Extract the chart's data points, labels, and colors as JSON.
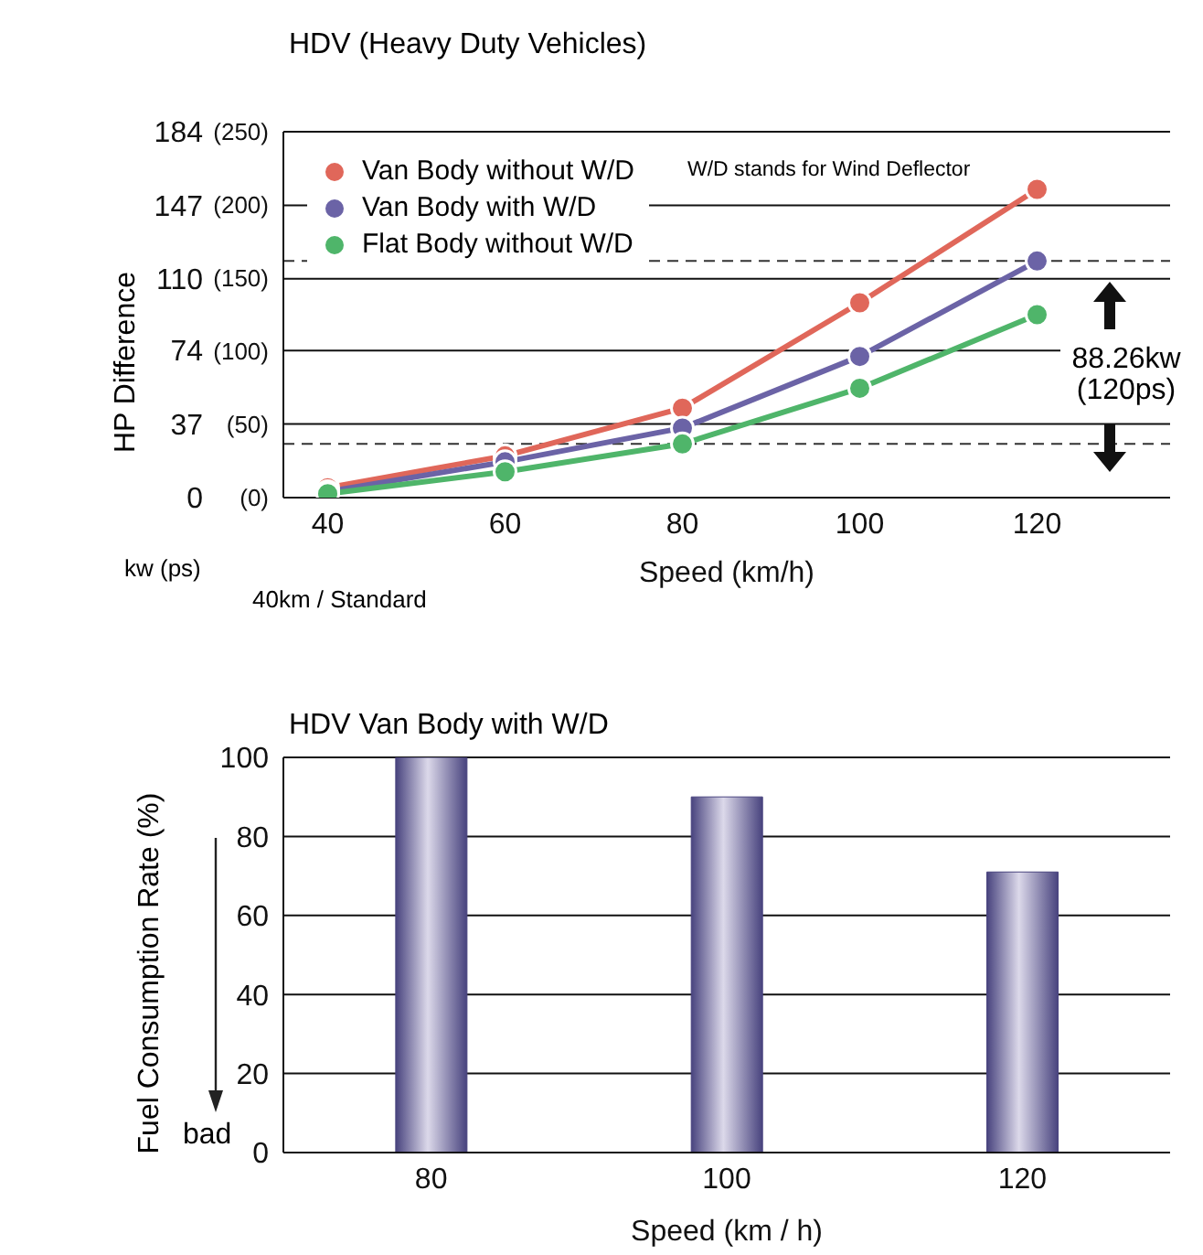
{
  "chart_data": [
    {
      "type": "line",
      "title": "HDV (Heavy Duty Vehicles)",
      "xlabel": "Speed (km/h)",
      "ylabel": "HP Difference",
      "x": [
        40,
        60,
        80,
        100,
        120
      ],
      "xlim": [
        35,
        135
      ],
      "xticks": [
        40,
        60,
        80,
        100,
        120
      ],
      "ylim": [
        0,
        184
      ],
      "yticks": [
        0,
        37,
        74,
        110,
        147,
        184
      ],
      "y2lim": [
        0,
        250
      ],
      "y2ticks": [
        {
          "value": 0,
          "label": "(0)"
        },
        {
          "value": 50,
          "label": "(50)"
        },
        {
          "value": 100,
          "label": "(100)"
        },
        {
          "value": 150,
          "label": "(150)"
        },
        {
          "value": 200,
          "label": "(200)"
        },
        {
          "value": 250,
          "label": "(250)"
        }
      ],
      "series": [
        {
          "name": "Van Body without W/D",
          "color": "#e0675a",
          "values": [
            5,
            21,
            45,
            98,
            155
          ]
        },
        {
          "name": "Van Body with W/D",
          "color": "#6b63a6",
          "values": [
            3,
            18,
            35,
            71,
            119
          ]
        },
        {
          "name": "Flat Body without W/D",
          "color": "#4fb56a",
          "values": [
            2,
            13,
            27,
            55,
            92
          ]
        }
      ],
      "marker": "circle",
      "grid": "y",
      "legend": "top left",
      "ref_lines": [
        {
          "axis": "y",
          "value": 119,
          "color": "#333333",
          "line_style": "dashed"
        },
        {
          "axis": "y",
          "value": 27,
          "color": "#333333",
          "line_style": "dashed"
        }
      ],
      "annotations": [
        "W/D stands for Wind Deflector",
        "88.26kw (120ps)",
        "kw (ps)",
        "40km / Standard"
      ]
    },
    {
      "type": "bar",
      "title": "HDV Van Body with W/D",
      "xlabel": "Speed (km / h)",
      "ylabel": "Fuel Consumption Rate (%)",
      "categories": [
        "80",
        "100",
        "120"
      ],
      "values": [
        100,
        90,
        71
      ],
      "color": "#48437e",
      "ylim": [
        0,
        100
      ],
      "yticks": [
        0,
        20,
        40,
        60,
        80,
        100
      ],
      "grid": "y",
      "annotations": [
        "bad"
      ]
    }
  ]
}
